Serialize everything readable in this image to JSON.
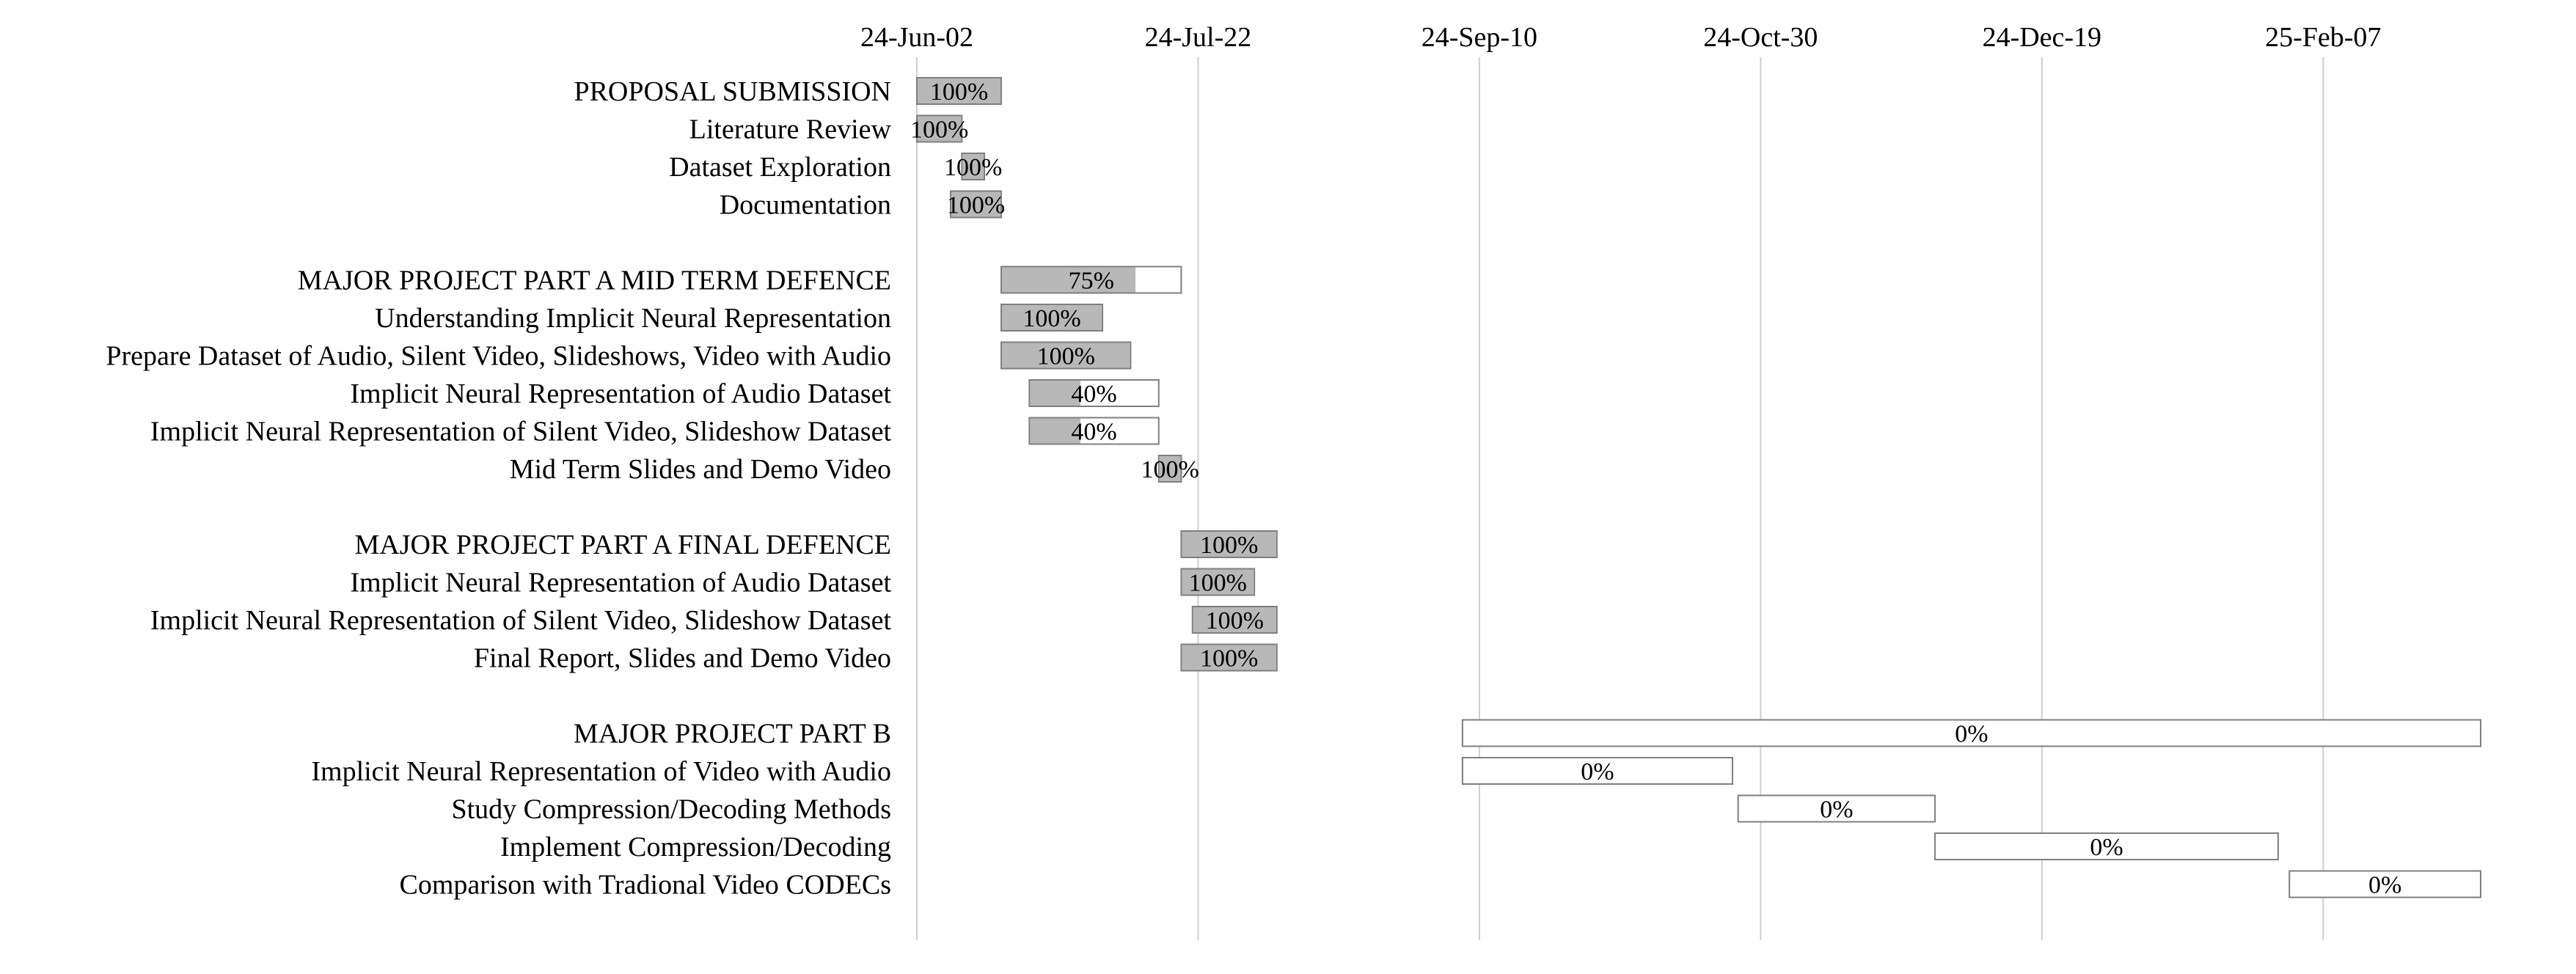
{
  "chart_data": {
    "type": "gantt",
    "title": "",
    "xlabel": "",
    "ylabel": "",
    "x_axis": {
      "type": "date",
      "min": "2024-06-02",
      "max": "2025-03-10",
      "tick_step_days": 50,
      "tick_labels": [
        "24-Jun-02",
        "24-Jul-22",
        "24-Sep-10",
        "24-Oct-30",
        "24-Dec-19",
        "25-Feb-07"
      ],
      "grid": true
    },
    "tasks": [
      {
        "name": "PROPOSAL SUBMISSION",
        "start": "2024-06-02",
        "end": "2024-06-17",
        "progress": 100,
        "label": "100%"
      },
      {
        "name": "Literature Review",
        "start": "2024-06-02",
        "end": "2024-06-10",
        "progress": 100,
        "label": "100%"
      },
      {
        "name": "Dataset Exploration",
        "start": "2024-06-10",
        "end": "2024-06-14",
        "progress": 100,
        "label": "100%"
      },
      {
        "name": "Documentation",
        "start": "2024-06-08",
        "end": "2024-06-17",
        "progress": 100,
        "label": "100%"
      },
      {
        "name": "",
        "spacer": true
      },
      {
        "name": "MAJOR PROJECT PART A MID TERM DEFENCE",
        "start": "2024-06-17",
        "end": "2024-07-19",
        "progress": 75,
        "label": "75%"
      },
      {
        "name": "Understanding Implicit Neural Representation",
        "start": "2024-06-17",
        "end": "2024-07-05",
        "progress": 100,
        "label": "100%"
      },
      {
        "name": "Prepare Dataset of  Audio, Silent Video, Slideshows, Video with Audio",
        "start": "2024-06-17",
        "end": "2024-07-10",
        "progress": 100,
        "label": "100%"
      },
      {
        "name": "Implicit Neural Representation of Audio Dataset",
        "start": "2024-06-22",
        "end": "2024-07-15",
        "progress": 40,
        "label": "40%"
      },
      {
        "name": "Implicit Neural Representation of Silent Video, Slideshow Dataset",
        "start": "2024-06-22",
        "end": "2024-07-15",
        "progress": 40,
        "label": "40%"
      },
      {
        "name": "Mid Term Slides and Demo Video",
        "start": "2024-07-15",
        "end": "2024-07-19",
        "progress": 100,
        "label": "100%"
      },
      {
        "name": "",
        "spacer": true
      },
      {
        "name": "MAJOR PROJECT PART A FINAL DEFENCE",
        "start": "2024-07-19",
        "end": "2024-08-05",
        "progress": 100,
        "label": "100%"
      },
      {
        "name": "Implicit Neural Representation of Audio Dataset",
        "start": "2024-07-19",
        "end": "2024-08-01",
        "progress": 100,
        "label": "100%"
      },
      {
        "name": "Implicit Neural Representation of Silent Video, Slideshow Dataset",
        "start": "2024-07-21",
        "end": "2024-08-05",
        "progress": 100,
        "label": "100%"
      },
      {
        "name": "Final Report, Slides and Demo Video",
        "start": "2024-07-19",
        "end": "2024-08-05",
        "progress": 100,
        "label": "100%"
      },
      {
        "name": "",
        "spacer": true
      },
      {
        "name": "MAJOR PROJECT PART B",
        "start": "2024-09-07",
        "end": "2025-03-07",
        "progress": 0,
        "label": "0%"
      },
      {
        "name": "Implicit Neural Representation of Video with Audio",
        "start": "2024-09-07",
        "end": "2024-10-25",
        "progress": 0,
        "label": "0%"
      },
      {
        "name": "Study Compression/Decoding Methods",
        "start": "2024-10-26",
        "end": "2024-11-30",
        "progress": 0,
        "label": "0%"
      },
      {
        "name": "Implement Compression/Decoding",
        "start": "2024-11-30",
        "end": "2025-01-30",
        "progress": 0,
        "label": "0%"
      },
      {
        "name": "Comparison with Tradional Video CODECs",
        "start": "2025-02-01",
        "end": "2025-03-07",
        "progress": 0,
        "label": "0%"
      }
    ],
    "colors": {
      "fill": "#b8b8b8",
      "outline": "#7f7f7f",
      "grid": "#cfcfcf",
      "text": "#000000"
    }
  }
}
